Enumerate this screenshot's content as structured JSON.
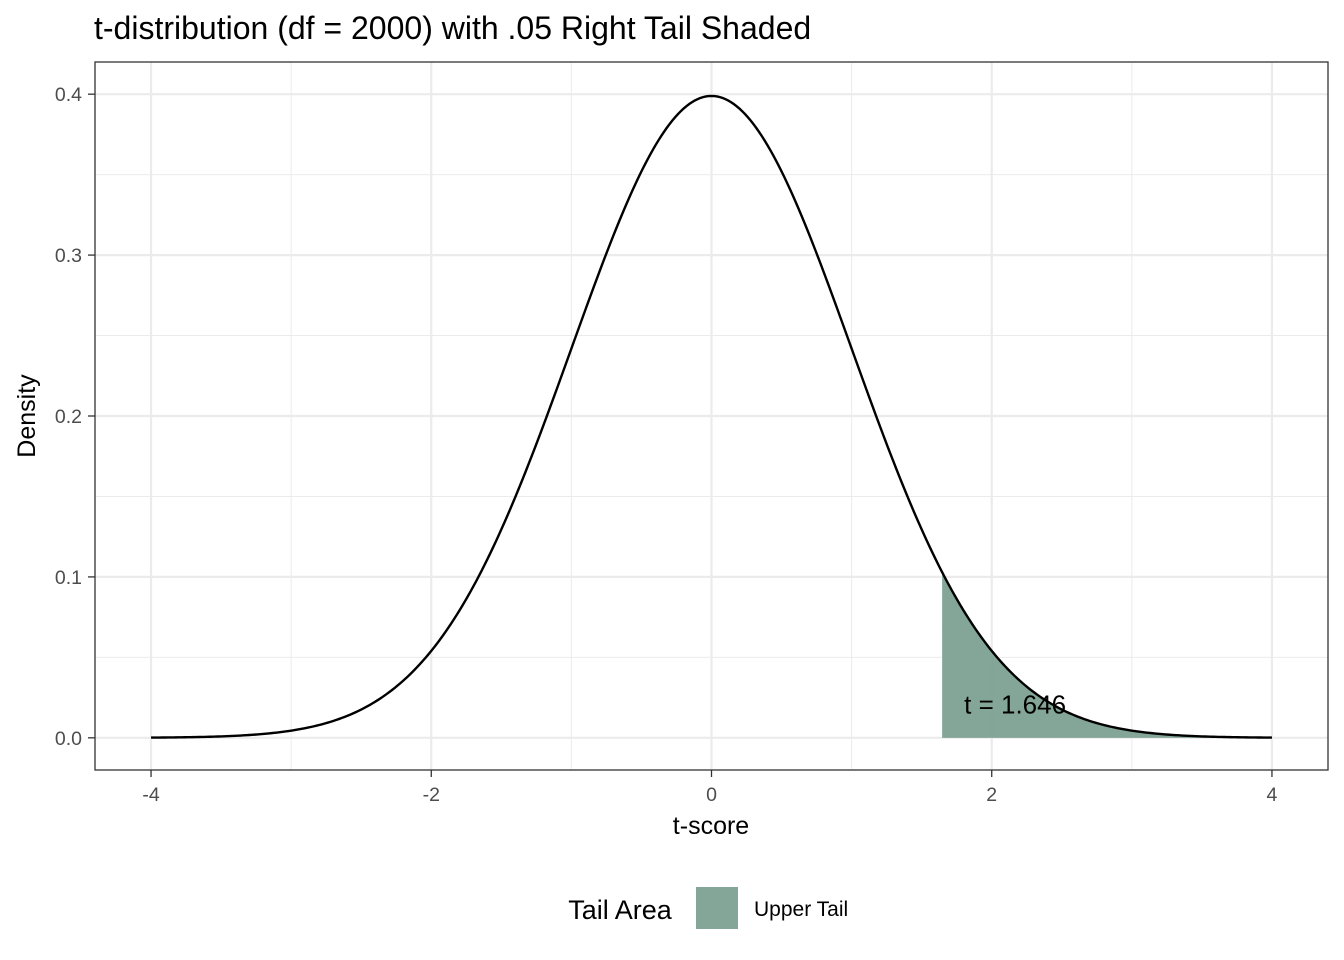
{
  "chart_data": {
    "type": "area",
    "title": "t-distribution (df = 2000) with .05 Right Tail Shaded",
    "xlabel": "t-score",
    "ylabel": "Density",
    "xlim": [
      -4,
      4
    ],
    "ylim": [
      0,
      0.4
    ],
    "x_ticks": [
      -4,
      -2,
      0,
      2,
      4
    ],
    "x_tick_labels": [
      "-4",
      "-2",
      "0",
      "2",
      "4"
    ],
    "y_ticks": [
      0.0,
      0.1,
      0.2,
      0.3,
      0.4
    ],
    "y_tick_labels": [
      "0.0",
      "0.1",
      "0.2",
      "0.3",
      "0.4"
    ],
    "grid": true,
    "degrees_of_freedom": 2000,
    "curve": {
      "x": [
        -4,
        -3.5,
        -3,
        -2.5,
        -2,
        -1.5,
        -1,
        -0.5,
        0,
        0.5,
        1,
        1.5,
        2,
        2.5,
        3,
        3.5,
        4
      ],
      "y": [
        0.0001,
        0.0009,
        0.0044,
        0.0175,
        0.054,
        0.1295,
        0.242,
        0.352,
        0.3989,
        0.352,
        0.242,
        0.1295,
        0.054,
        0.0175,
        0.0044,
        0.0009,
        0.0001
      ]
    },
    "shaded_region": {
      "x_from": 1.646,
      "x_to": 4,
      "color": "#7a9e90"
    },
    "annotation": {
      "text": "t = 1.646",
      "x": 1.646,
      "y": 0.02
    },
    "legend": {
      "title": "Tail Area",
      "position": "bottom",
      "entries": [
        {
          "label": "Upper Tail",
          "color": "#7a9e90"
        }
      ]
    }
  }
}
